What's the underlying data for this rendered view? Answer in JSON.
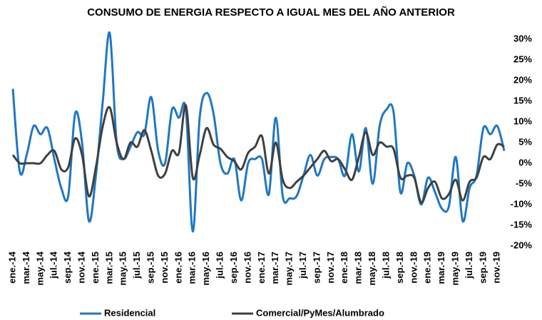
{
  "chart_data": {
    "type": "line",
    "title": "CONSUMO DE ENERGIA RESPECTO A IGUAL MES DEL AÑO ANTERIOR",
    "categories": [
      "ene.-14",
      null,
      "mar.-14",
      null,
      "may.-14",
      null,
      "jul.-14",
      null,
      "sep.-14",
      null,
      "nov.-14",
      null,
      "ene.-15",
      null,
      "mar.-15",
      null,
      "may.-15",
      null,
      "jul.-15",
      null,
      "sep.-15",
      null,
      "nov.-15",
      null,
      "ene.-16",
      null,
      "mar.-16",
      null,
      "may.-16",
      null,
      "jul.-16",
      null,
      "sep.-16",
      null,
      "nov.-16",
      null,
      "ene.-17",
      null,
      "mar.-17",
      null,
      "may.-17",
      null,
      "jul.-17",
      null,
      "sep.-17",
      null,
      "nov.-17",
      null,
      "ene.-18",
      null,
      "mar.-18",
      null,
      "may.-18",
      null,
      "jul.-18",
      null,
      "sep.-18",
      null,
      "nov.-18",
      null,
      "ene.-19",
      null,
      "mar.-19",
      null,
      "may.-19",
      null,
      "jul.-19",
      null,
      "sep.-19",
      null,
      "nov.-19",
      null
    ],
    "series": [
      {
        "name": "Residencial",
        "color": "#1f77c4",
        "values": [
          18,
          -2,
          2,
          9,
          7,
          8.5,
          1,
          -6,
          -8,
          12,
          5,
          -14,
          -3,
          15,
          31.5,
          5,
          1,
          4,
          7.5,
          7,
          16,
          3,
          0,
          13,
          11,
          13,
          -16.5,
          11,
          17,
          12,
          0,
          -2.5,
          1,
          -9,
          0,
          1,
          1,
          -7.5,
          11,
          -8,
          -8.5,
          -8,
          -3,
          2,
          -3,
          1,
          1.5,
          1,
          -3,
          7,
          -2,
          8.5,
          -5,
          9,
          13,
          12.5,
          -7,
          0,
          -3,
          -10,
          -3.5,
          -7,
          -11,
          -10.5,
          1.5,
          -14,
          -6,
          -3,
          8.5,
          7,
          9,
          3
        ]
      },
      {
        "name": "Comercial/PyMes/Alumbrado",
        "color": "#404040",
        "values": [
          2,
          0,
          0,
          0,
          0,
          2,
          3,
          -1.5,
          -1,
          6,
          2,
          -8,
          -1,
          9,
          13.5,
          5,
          1,
          5,
          4,
          8,
          3,
          -3,
          -2.5,
          3,
          2.5,
          14,
          -3.5,
          2,
          8.5,
          4.5,
          3.5,
          1.5,
          0.5,
          -1.5,
          2.5,
          4,
          6.5,
          -2.5,
          5,
          -4,
          -6,
          -4.5,
          -3,
          -1,
          1,
          3,
          0.5,
          1,
          -1.5,
          -4,
          1.5,
          7.5,
          2,
          5,
          4,
          3.5,
          -3.5,
          -3,
          -3.5,
          -9.5,
          -6,
          -4.5,
          -8.5,
          -7.5,
          -4,
          -9,
          -4.5,
          -3.5,
          1.5,
          1,
          4.5,
          4
        ]
      }
    ],
    "ylim": [
      -20,
      30
    ],
    "yticks": [
      {
        "value": 30,
        "label": "30%"
      },
      {
        "value": 25,
        "label": "25%"
      },
      {
        "value": 20,
        "label": "20%"
      },
      {
        "value": 15,
        "label": "15%"
      },
      {
        "value": 10,
        "label": "10%"
      },
      {
        "value": 5,
        "label": "5%"
      },
      {
        "value": 0,
        "label": "0%"
      },
      {
        "value": -5,
        "label": "-5%"
      },
      {
        "value": -10,
        "label": "-10%"
      },
      {
        "value": -15,
        "label": "-15%"
      },
      {
        "value": -20,
        "label": "-20%"
      }
    ],
    "grid": false,
    "legend": "bottom"
  }
}
